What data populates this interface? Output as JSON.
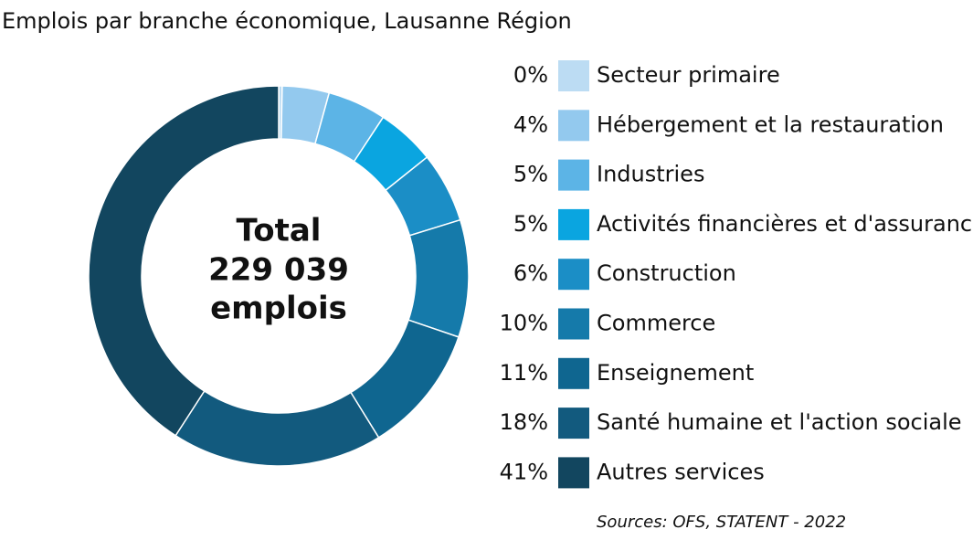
{
  "chart_data": {
    "type": "donut",
    "title": "Emplois par branche économique, Lausanne Région",
    "categories": [
      "Secteur primaire",
      "Hébergement et la restauration",
      "Industries",
      "Activités financières et d'assurance",
      "Construction",
      "Commerce",
      "Enseignement",
      "Santé humaine et l'action sociale",
      "Autres services"
    ],
    "values": [
      0.3,
      4,
      5,
      5,
      6,
      10,
      11,
      18,
      41
    ],
    "value_labels": [
      "0%",
      "4%",
      "5%",
      "5%",
      "6%",
      "10%",
      "11%",
      "18%",
      "41%"
    ],
    "colors": [
      "#bcdcf3",
      "#93c9ee",
      "#5cb4e6",
      "#0aa5e0",
      "#1b8ec6",
      "#157aaa",
      "#0f6690",
      "#125a7e",
      "#12465f"
    ],
    "center_label": [
      "Total",
      "229 039",
      "emplois"
    ],
    "source": "Sources: OFS, STATENT - 2022"
  }
}
